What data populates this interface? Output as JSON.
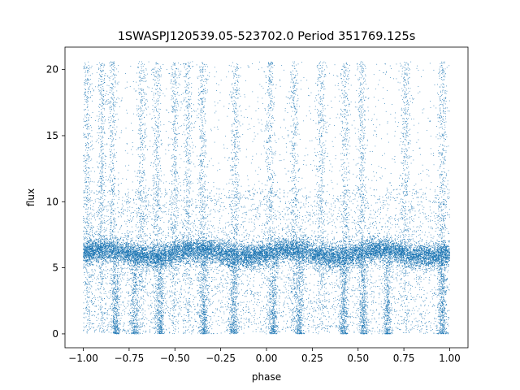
{
  "chart_data": {
    "type": "scatter",
    "title": "1SWASPJ120539.05-523702.0 Period 351769.125s",
    "xlabel": "phase",
    "ylabel": "flux",
    "xlim": [
      -1.1,
      1.1
    ],
    "ylim": [
      -1.05,
      21.7
    ],
    "xticks": [
      -1.0,
      -0.75,
      -0.5,
      -0.25,
      0.0,
      0.25,
      0.5,
      0.75,
      1.0
    ],
    "xtick_labels": [
      "−1.00",
      "−0.75",
      "−0.50",
      "−0.25",
      "0.00",
      "0.25",
      "0.50",
      "0.75",
      "1.00"
    ],
    "yticks": [
      0,
      5,
      10,
      15,
      20
    ],
    "ytick_labels": [
      "0",
      "5",
      "10",
      "15",
      "20"
    ],
    "grid": false,
    "marker_color": "#1f77b4",
    "series": [
      {
        "x_range": [
          -1.0,
          1.0
        ],
        "y_range": [
          0.0,
          20.6
        ],
        "baseline_flux": 6.1,
        "baseline_scatter": 0.45,
        "bright_column_phases": [
          -0.98,
          -0.9,
          -0.84,
          -0.68,
          -0.6,
          -0.5,
          -0.43,
          -0.35,
          -0.17,
          0.02,
          0.15,
          0.3,
          0.43,
          0.52,
          0.76,
          0.96
        ],
        "dim_column_phases": [
          -0.82,
          -0.72,
          -0.58,
          -0.34,
          -0.18,
          0.04,
          0.18,
          0.42,
          0.53,
          0.66,
          0.96
        ]
      }
    ]
  }
}
